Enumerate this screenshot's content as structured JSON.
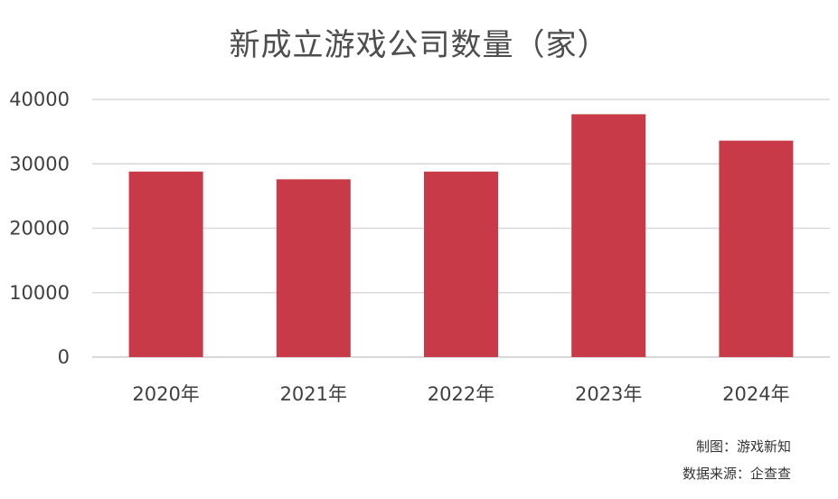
{
  "chart_data": {
    "type": "bar",
    "title": "新成立游戏公司数量（家）",
    "categories": [
      "2020年",
      "2021年",
      "2022年",
      "2023年",
      "2024年"
    ],
    "values": [
      28800,
      27600,
      28800,
      37700,
      33600
    ],
    "yticks": [
      "0",
      "10000",
      "20000",
      "30000",
      "40000"
    ],
    "ylim": [
      0,
      40000
    ],
    "grid": true,
    "bar_color": "#c83a47",
    "grid_color": "#d9d9d9"
  },
  "footer": {
    "credit": "制图：游戏新知",
    "source": "数据来源：企查查"
  }
}
